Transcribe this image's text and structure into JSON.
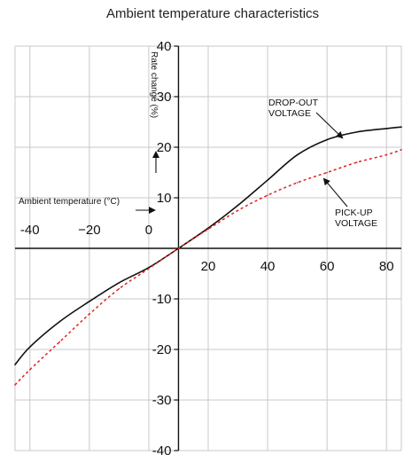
{
  "chart_data": {
    "type": "line",
    "title": "Ambient temperature  characteristics",
    "xlabel": "Ambient temperature (°C)",
    "ylabel": "Rate change (%)",
    "xlim": [
      -45,
      85
    ],
    "ylim": [
      -40,
      40
    ],
    "grid": true,
    "x_ticks": [
      -40,
      -20,
      0,
      20,
      40,
      60,
      80
    ],
    "x_tick_labels": [
      "-40",
      "−20",
      "0",
      "20",
      "40",
      "60",
      "80"
    ],
    "y_ticks": [
      40,
      30,
      20,
      10,
      -10,
      -20,
      -30,
      -40
    ],
    "y_tick_labels": [
      "40",
      "30",
      "20",
      "10",
      "-10",
      "-20",
      "-30",
      "-40"
    ],
    "series": [
      {
        "name": "DROP-OUT VOLTAGE",
        "style": "solid",
        "color": "#111111",
        "x": [
          -45,
          -40,
          -30,
          -20,
          -10,
          0,
          10,
          20,
          30,
          40,
          50,
          60,
          70,
          80,
          85
        ],
        "y": [
          -23,
          -19.5,
          -14.5,
          -10.5,
          -6.8,
          -3.8,
          0,
          4,
          8.5,
          13.5,
          18.5,
          21.5,
          23,
          23.7,
          24
        ]
      },
      {
        "name": "PICK-UP VOLTAGE",
        "style": "dashed",
        "color": "#e0201b",
        "x": [
          -45,
          -40,
          -30,
          -20,
          -10,
          0,
          10,
          20,
          30,
          40,
          50,
          60,
          70,
          80,
          85
        ],
        "y": [
          -27,
          -24,
          -18.5,
          -13,
          -8,
          -4,
          0,
          3.8,
          7.5,
          10.5,
          13,
          15,
          17,
          18.5,
          19.5
        ]
      }
    ],
    "annotations": [
      {
        "lines": [
          "DROP-OUT",
          "VOLTAGE"
        ],
        "points_to": [
          70,
          23
        ]
      },
      {
        "lines": [
          "PICK-UP",
          "VOLTAGE"
        ],
        "points_to": [
          60,
          14.5
        ]
      }
    ]
  }
}
